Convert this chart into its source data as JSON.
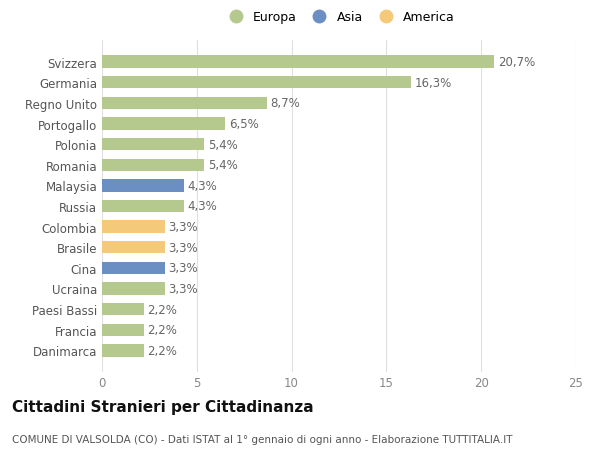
{
  "categories": [
    "Danimarca",
    "Francia",
    "Paesi Bassi",
    "Ucraina",
    "Cina",
    "Brasile",
    "Colombia",
    "Russia",
    "Malaysia",
    "Romania",
    "Polonia",
    "Portogallo",
    "Regno Unito",
    "Germania",
    "Svizzera"
  ],
  "values": [
    2.2,
    2.2,
    2.2,
    3.3,
    3.3,
    3.3,
    3.3,
    4.3,
    4.3,
    5.4,
    5.4,
    6.5,
    8.7,
    16.3,
    20.7
  ],
  "labels": [
    "2,2%",
    "2,2%",
    "2,2%",
    "3,3%",
    "3,3%",
    "3,3%",
    "3,3%",
    "4,3%",
    "4,3%",
    "5,4%",
    "5,4%",
    "6,5%",
    "8,7%",
    "16,3%",
    "20,7%"
  ],
  "colors": [
    "#b5c98e",
    "#b5c98e",
    "#b5c98e",
    "#b5c98e",
    "#6b8fc2",
    "#f5c97a",
    "#f5c97a",
    "#b5c98e",
    "#6b8fc2",
    "#b5c98e",
    "#b5c98e",
    "#b5c98e",
    "#b5c98e",
    "#b5c98e",
    "#b5c98e"
  ],
  "legend": [
    {
      "label": "Europa",
      "color": "#b5c98e"
    },
    {
      "label": "Asia",
      "color": "#6b8fc2"
    },
    {
      "label": "America",
      "color": "#f5c97a"
    }
  ],
  "xlim": [
    0,
    25
  ],
  "xticks": [
    0,
    5,
    10,
    15,
    20,
    25
  ],
  "title": "Cittadini Stranieri per Cittadinanza",
  "subtitle": "COMUNE DI VALSOLDA (CO) - Dati ISTAT al 1° gennaio di ogni anno - Elaborazione TUTTITALIA.IT",
  "background_color": "#ffffff",
  "grid_color": "#e0e0e0",
  "bar_height": 0.6,
  "label_fontsize": 8.5,
  "tick_fontsize": 8.5,
  "title_fontsize": 11,
  "subtitle_fontsize": 7.5
}
